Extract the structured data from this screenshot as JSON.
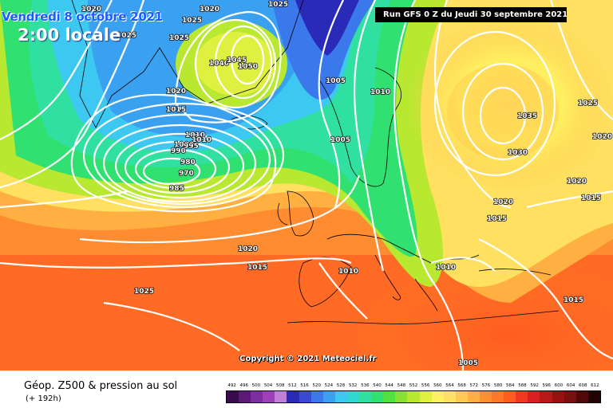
{
  "header": {
    "date": "Vendredi 8 octobre 2021",
    "local_time": "2:00 locale",
    "run_info": "Run GFS 0 Z du Jeudi 30 septembre 2021"
  },
  "copyright": "Copyright © 2021 Meteociel.fr",
  "legend": {
    "title": "Géop. Z500 & pression au sol",
    "lead_time": "(+ 192h)",
    "scale_values": [
      "492",
      "496",
      "500",
      "504",
      "508",
      "512",
      "516",
      "520",
      "524",
      "528",
      "532",
      "536",
      "540",
      "544",
      "548",
      "552",
      "556",
      "560",
      "564",
      "568",
      "572",
      "576",
      "580",
      "584",
      "588",
      "592",
      "596",
      "600",
      "604",
      "608",
      "612"
    ],
    "scale_colors": [
      "#3a0a4e",
      "#5c1a78",
      "#7e2e9e",
      "#a040b8",
      "#c080d8",
      "#2a2ab8",
      "#3a48d8",
      "#3a78ec",
      "#3aa0f0",
      "#3cc8f0",
      "#30d8d0",
      "#30e0a0",
      "#30e070",
      "#50e040",
      "#88e030",
      "#b8e830",
      "#e0f040",
      "#fff060",
      "#ffe060",
      "#ffc850",
      "#ffb040",
      "#ff9030",
      "#ff7828",
      "#ff5c20",
      "#f03820",
      "#d82020",
      "#b81818",
      "#981010",
      "#781010",
      "#500808",
      "#200404"
    ]
  },
  "isobars": {
    "labels": [
      "1020",
      "1025",
      "1020",
      "1025",
      "1025",
      "1025",
      "1020",
      "1015",
      "1040",
      "1050",
      "1045",
      "1010",
      "1005",
      "1010",
      "1010",
      "1000",
      "990",
      "995",
      "980",
      "970",
      "985",
      "1005",
      "1035",
      "1025",
      "1030",
      "1020",
      "1020",
      "1020",
      "1015",
      "1015",
      "1020",
      "1015",
      "1025",
      "1010",
      "1010",
      "1015",
      "1005"
    ]
  }
}
